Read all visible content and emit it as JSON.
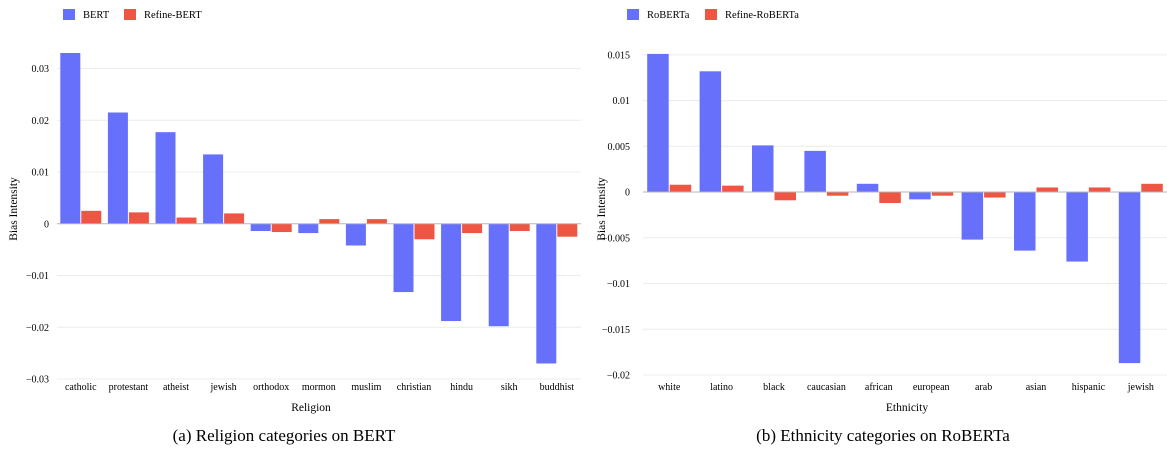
{
  "chart_data": [
    {
      "type": "bar",
      "categories": [
        "catholic",
        "protestant",
        "atheist",
        "jewish",
        "orthodox",
        "mormon",
        "muslim",
        "christian",
        "hindu",
        "sikh",
        "buddhist"
      ],
      "series": [
        {
          "name": "BERT",
          "color": "#6670fa",
          "values": [
            0.033,
            0.0215,
            0.0177,
            0.0134,
            -0.0014,
            -0.0018,
            -0.0042,
            -0.0132,
            -0.0188,
            -0.0198,
            -0.027
          ]
        },
        {
          "name": "Refine-BERT",
          "color": "#ee5543",
          "values": [
            0.0025,
            0.0022,
            0.0012,
            0.002,
            -0.0016,
            0.0009,
            0.0009,
            -0.003,
            -0.0018,
            -0.0014,
            -0.0025
          ]
        }
      ],
      "ylim": [
        -0.03,
        0.033
      ],
      "yticks": [
        -0.03,
        -0.02,
        -0.01,
        0,
        0.01,
        0.02,
        0.03
      ],
      "ytick_labels": [
        "−0.03",
        "−0.02",
        "−0.01",
        "0",
        "0.01",
        "0.02",
        "0.03"
      ],
      "xlabel": "Religion",
      "ylabel": "Bias Intensity",
      "caption": "(a) Religion categories on BERT",
      "legend": "top-left"
    },
    {
      "type": "bar",
      "categories": [
        "white",
        "latino",
        "black",
        "caucasian",
        "african",
        "european",
        "arab",
        "asian",
        "hispanic",
        "jewish"
      ],
      "series": [
        {
          "name": "RoBERTa",
          "color": "#6670fa",
          "values": [
            0.0151,
            0.0132,
            0.0051,
            0.0045,
            0.0009,
            -0.0008,
            -0.0052,
            -0.0064,
            -0.0076,
            -0.0187
          ]
        },
        {
          "name": "Refine-RoBERTa",
          "color": "#ee5543",
          "values": [
            0.0008,
            0.0007,
            -0.0009,
            -0.0004,
            -0.0012,
            -0.0004,
            -0.0006,
            0.0005,
            0.0005,
            0.0009
          ]
        }
      ],
      "ylim": [
        -0.02,
        0.0152
      ],
      "yticks": [
        -0.02,
        -0.015,
        -0.01,
        -0.005,
        0,
        0.005,
        0.01,
        0.015
      ],
      "ytick_labels": [
        "−0.02",
        "−0.015",
        "−0.01",
        "−0.005",
        "0",
        "0.005",
        "0.01",
        "0.015"
      ],
      "xlabel": "Ethnicity",
      "ylabel": "Bias Intensity",
      "caption": "(b) Ethnicity categories on RoBERTa",
      "legend": "top-left"
    }
  ]
}
